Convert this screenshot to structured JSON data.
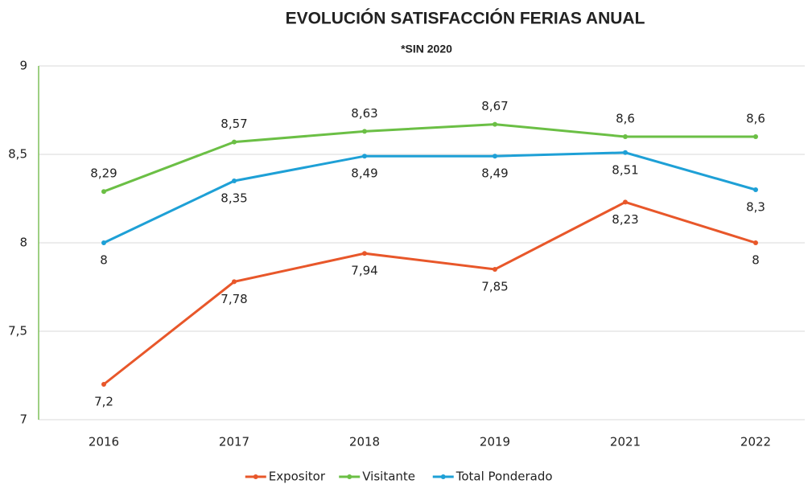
{
  "chart_data": {
    "type": "line",
    "title": "EVOLUCIÓN SATISFACCIÓN FERIAS ANUAL",
    "subtitle": "*SIN 2020",
    "categories": [
      "2016",
      "2017",
      "2018",
      "2019",
      "2021",
      "2022"
    ],
    "series": [
      {
        "name": "Expositor",
        "color": "#e8572a",
        "values": [
          7.2,
          7.78,
          7.94,
          7.85,
          8.23,
          8
        ],
        "value_labels": [
          "7,2",
          "7,78",
          "7,94",
          "7,85",
          "8,23",
          "8"
        ]
      },
      {
        "name": "Visitante",
        "color": "#6bbf45",
        "values": [
          8.29,
          8.57,
          8.63,
          8.67,
          8.6,
          8.6
        ],
        "value_labels": [
          "8,29",
          "8,57",
          "8,63",
          "8,67",
          "8,6",
          "8,6"
        ]
      },
      {
        "name": "Total Ponderado",
        "color": "#1ea0d6",
        "values": [
          8,
          8.35,
          8.49,
          8.49,
          8.51,
          8.3
        ],
        "value_labels": [
          "8",
          "8,35",
          "8,49",
          "8,49",
          "8,51",
          "8,3"
        ]
      }
    ],
    "ylim": [
      7,
      9
    ],
    "yticks": [
      7,
      {
        "value": 7.5,
        "label": "7,5"
      },
      8,
      {
        "value": 8.5,
        "label": "8,5"
      },
      9
    ],
    "grid": true,
    "legend": "bottom"
  }
}
